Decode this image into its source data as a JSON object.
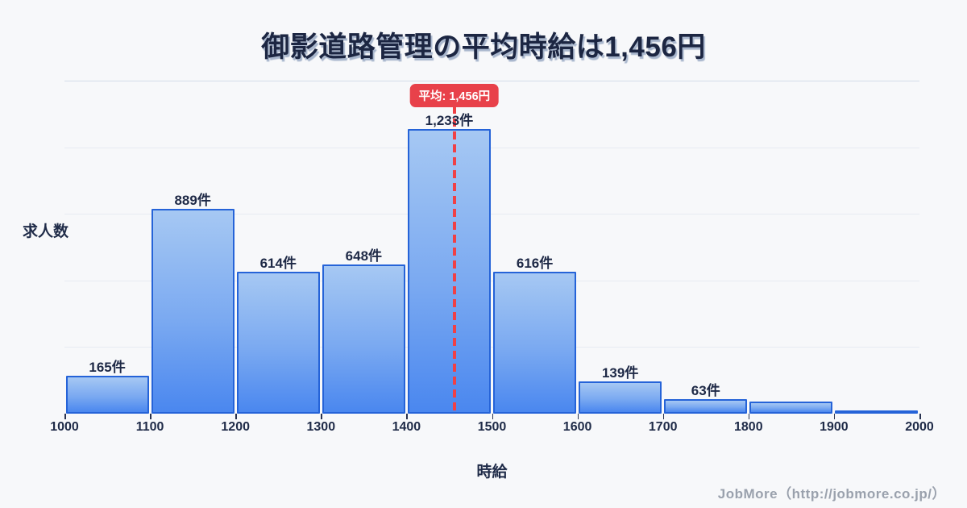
{
  "page": {
    "title": "御影道路管理の平均時給は1,456円",
    "footer_credit": "JobMore（http://jobmore.co.jp/）"
  },
  "colors": {
    "background": "#f7f8fa",
    "title_text": "#1c2642",
    "axis_text": "#1f2b48",
    "bar_border": "#2563d8",
    "bar_gradient_top": "#a6c8f3",
    "bar_gradient_bottom": "#4a87ef",
    "average_red": "#e8414a",
    "grid_line": "#e7ebf2",
    "plot_top_border": "#d4dce9",
    "footer_text": "#9aa1ad"
  },
  "chart_data": {
    "type": "bar",
    "subtype": "histogram",
    "title": "御影道路管理の平均時給は1,456円",
    "xlabel": "時給",
    "ylabel": "求人数",
    "x_ticks": [
      "1000",
      "1100",
      "1200",
      "1300",
      "1400",
      "1500",
      "1600",
      "1700",
      "1800",
      "1900",
      "2000"
    ],
    "bin_edges": [
      1000,
      1100,
      1200,
      1300,
      1400,
      1500,
      1600,
      1700,
      1800,
      1900,
      2000
    ],
    "categories": [
      "1000-1100",
      "1100-1200",
      "1200-1300",
      "1300-1400",
      "1400-1500",
      "1500-1600",
      "1600-1700",
      "1700-1800",
      "1800-1900",
      "1900-2000"
    ],
    "values": [
      165,
      889,
      614,
      648,
      1233,
      616,
      139,
      63,
      54,
      15
    ],
    "bar_labels": [
      "165件",
      "889件",
      "614件",
      "648件",
      "1,233件",
      "616件",
      "139件",
      "63件",
      "",
      ""
    ],
    "unit": "件",
    "ylim": [
      0,
      1443
    ],
    "grid": "horizontal",
    "legend": "none",
    "average_line": {
      "value": 1456,
      "label": "平均: 1,456円"
    }
  }
}
